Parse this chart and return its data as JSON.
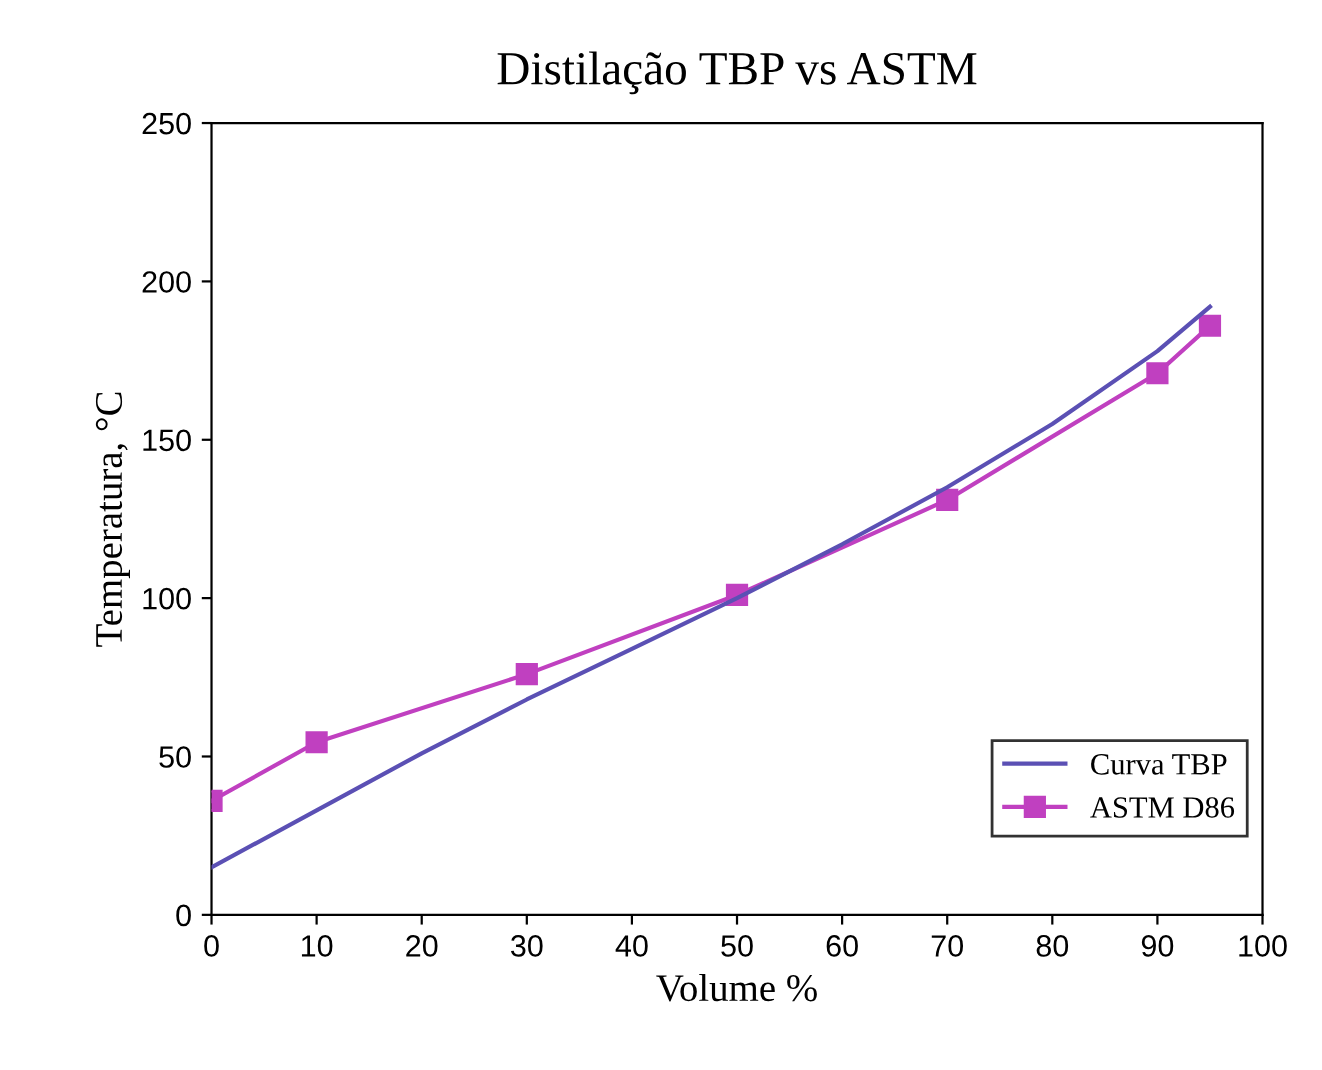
{
  "chart_data": {
    "type": "line",
    "title": "Distilação TBP vs ASTM",
    "xlabel": "Volume %",
    "ylabel": "Temperatura, °C",
    "xlim": [
      0,
      100
    ],
    "xticks": [
      0,
      10,
      20,
      30,
      40,
      50,
      60,
      70,
      80,
      90,
      100
    ],
    "ylim": [
      0,
      250
    ],
    "yticks": [
      0,
      50,
      100,
      150,
      200,
      250
    ],
    "grid": false,
    "legend": "bottom right",
    "series": [
      {
        "name": "Curva TBP",
        "color": "#5b50b4",
        "marker": "none",
        "x": [
          0,
          10,
          20,
          30,
          40,
          50,
          60,
          70,
          80,
          90,
          95
        ],
        "values": [
          15,
          33,
          51,
          68,
          84,
          100,
          117,
          135,
          155,
          178,
          192
        ]
      },
      {
        "name": "ASTM D86",
        "color": "#c040c0",
        "marker": "square",
        "x": [
          0,
          10,
          30,
          50,
          70,
          90,
          95
        ],
        "values": [
          36,
          54.5,
          76,
          101,
          131,
          171,
          186
        ]
      }
    ]
  }
}
